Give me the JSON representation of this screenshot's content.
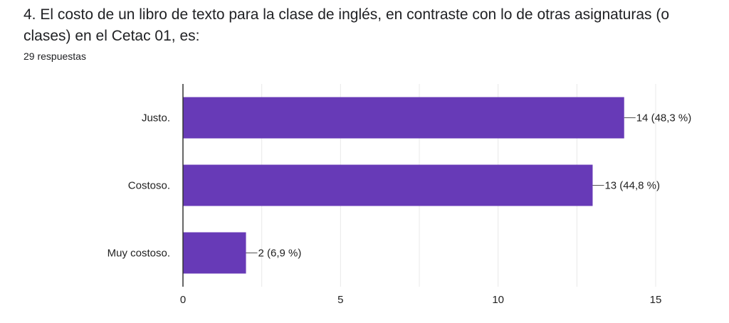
{
  "question": {
    "title": "4.  El costo de un libro de texto para la clase de inglés, en contraste con lo de otras asignaturas (o clases) en el Cetac 01, es:",
    "responses": "29 respuestas"
  },
  "colors": {
    "bar": "#673ab7",
    "grid": "#e8e8e8",
    "axis": "#333333",
    "leader": "#555555"
  },
  "chart_data": {
    "type": "bar",
    "orientation": "horizontal",
    "categories": [
      "Justo.",
      "Costoso.",
      "Muy costoso."
    ],
    "values": [
      14,
      13,
      2
    ],
    "data_labels": [
      "14 (48,3 %)",
      "13 (44,8 %)",
      "2 (6,9 %)"
    ],
    "xlim": [
      0,
      15
    ],
    "x_ticks": [
      0,
      5,
      10,
      15
    ],
    "x_tick_labels": [
      "0",
      "5",
      "10",
      "15"
    ],
    "grid": true,
    "legend": "none"
  }
}
